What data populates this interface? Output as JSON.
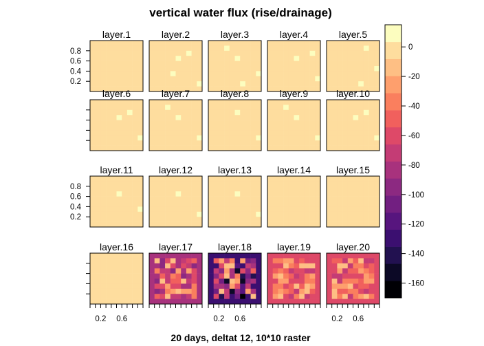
{
  "chart_data": {
    "type": "heatmap",
    "title": "vertical water flux (rise/drainage)",
    "xlabel": "20 days, deltat 12, 10*10 raster",
    "ylabel": "",
    "grid_size": [
      10,
      10
    ],
    "layout": {
      "columns": 5,
      "rows": 4
    },
    "xlim": [
      0,
      1
    ],
    "ylim": [
      0,
      1
    ],
    "x_ticks": [
      0.2,
      0.6
    ],
    "y_ticks": [
      0.2,
      0.4,
      0.6,
      0.8
    ],
    "x_tick_labels": [
      "0.2",
      "0.6"
    ],
    "y_tick_labels": [
      "0.2",
      "0.4",
      "0.6",
      "0.8"
    ],
    "colorbar": {
      "min": -170,
      "max": 15,
      "ticks": [
        0,
        -20,
        -40,
        -60,
        -80,
        -100,
        -120,
        -140,
        -160
      ],
      "tick_labels": [
        "0",
        "-20",
        "-40",
        "-60",
        "-80",
        "-100",
        "-120",
        "-140",
        "-160"
      ],
      "colors": [
        "#000004",
        "#0c0926",
        "#221150",
        "#3b0f70",
        "#57157e",
        "#721f81",
        "#8c2981",
        "#a8327d",
        "#c43c75",
        "#de4968",
        "#f1605d",
        "#fa7f5e",
        "#fe9f6d",
        "#febf84",
        "#fedd9e",
        "#fcfdbf"
      ]
    },
    "panels": [
      {
        "label": "layer.1",
        "base": -5,
        "spots": []
      },
      {
        "label": "layer.2",
        "base": -5,
        "spots": [
          [
            7,
            2,
            5
          ],
          [
            5,
            3,
            5
          ],
          [
            4,
            6,
            5
          ],
          [
            9,
            8,
            5
          ]
        ]
      },
      {
        "label": "layer.3",
        "base": -5,
        "spots": [
          [
            3,
            1,
            5
          ],
          [
            5,
            3,
            5
          ],
          [
            9,
            6,
            5
          ],
          [
            6,
            8,
            5
          ]
        ]
      },
      {
        "label": "layer.4",
        "base": -5,
        "spots": [
          [
            8,
            2,
            5
          ],
          [
            5,
            3,
            5
          ],
          [
            9,
            7,
            5
          ]
        ]
      },
      {
        "label": "layer.5",
        "base": -5,
        "spots": [
          [
            7,
            1,
            5
          ],
          [
            9,
            5,
            5
          ],
          [
            6,
            8,
            5
          ]
        ]
      },
      {
        "label": "layer.6",
        "base": -5,
        "spots": [
          [
            7,
            2,
            5
          ],
          [
            5,
            3,
            5
          ],
          [
            9,
            7,
            5
          ]
        ]
      },
      {
        "label": "layer.7",
        "base": -5,
        "spots": [
          [
            3,
            1,
            5
          ],
          [
            5,
            3,
            5
          ],
          [
            9,
            7,
            5
          ]
        ]
      },
      {
        "label": "layer.8",
        "base": -5,
        "spots": [
          [
            5,
            2,
            5
          ],
          [
            9,
            7,
            5
          ]
        ]
      },
      {
        "label": "layer.9",
        "base": -5,
        "spots": [
          [
            3,
            1,
            5
          ],
          [
            5,
            3,
            5
          ],
          [
            9,
            7,
            5
          ]
        ]
      },
      {
        "label": "layer.10",
        "base": -5,
        "spots": [
          [
            7,
            2,
            5
          ],
          [
            5,
            3,
            5
          ],
          [
            9,
            7,
            5
          ]
        ]
      },
      {
        "label": "layer.11",
        "base": -5,
        "spots": [
          [
            5,
            3,
            5
          ],
          [
            9,
            6,
            5
          ]
        ]
      },
      {
        "label": "layer.12",
        "base": -5,
        "spots": [
          [
            5,
            3,
            5
          ],
          [
            9,
            7,
            5
          ]
        ]
      },
      {
        "label": "layer.13",
        "base": -5,
        "spots": [
          [
            5,
            3,
            5
          ],
          [
            9,
            7,
            5
          ]
        ]
      },
      {
        "label": "layer.14",
        "base": -5,
        "spots": []
      },
      {
        "label": "layer.15",
        "base": -5,
        "spots": []
      },
      {
        "label": "layer.16",
        "base": -5,
        "spots": []
      },
      {
        "label": "layer.17",
        "base": -85,
        "seed": 17,
        "low": -100,
        "high": -10,
        "border": -85
      },
      {
        "label": "layer.18",
        "base": -125,
        "seed": 18,
        "low": -165,
        "high": -10,
        "border": -125
      },
      {
        "label": "layer.19",
        "base": -65,
        "seed": 19,
        "low": -75,
        "high": -10,
        "border": -65
      },
      {
        "label": "layer.20",
        "base": -65,
        "seed": 20,
        "low": -75,
        "high": -10,
        "border": -65
      }
    ]
  }
}
